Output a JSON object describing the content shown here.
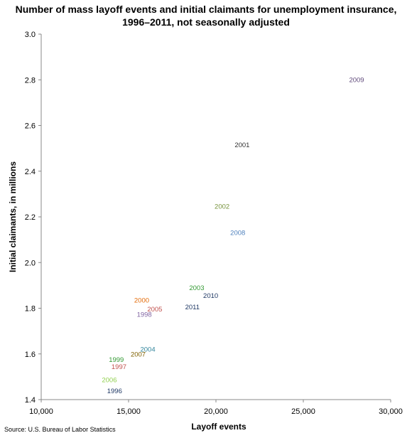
{
  "chart_data": {
    "type": "scatter",
    "title_line1": "Number of mass layoff events and initial claimants for unemployment insurance,",
    "title_line2": "1996–2011, not seasonally adjusted",
    "xlabel": "Layoff events",
    "ylabel": "Initial claimants, in millions",
    "xlim": [
      10000,
      30000
    ],
    "ylim": [
      1.4,
      3.0
    ],
    "xticks": [
      10000,
      15000,
      20000,
      25000,
      30000
    ],
    "xtick_labels": [
      "10,000",
      "15,000",
      "20,000",
      "25,000",
      "30,000"
    ],
    "yticks": [
      1.4,
      1.6,
      1.8,
      2.0,
      2.2,
      2.4,
      2.6,
      2.8,
      3.0
    ],
    "ytick_labels": [
      "1.4",
      "1.6",
      "1.8",
      "2.0",
      "2.2",
      "2.4",
      "2.6",
      "2.8",
      "3.0"
    ],
    "grid": false,
    "points": [
      {
        "label": "1996",
        "x": 14200,
        "y": 1.437,
        "color": "#1f3864"
      },
      {
        "label": "1997",
        "x": 14450,
        "y": 1.543,
        "color": "#c0504d"
      },
      {
        "label": "1998",
        "x": 15900,
        "y": 1.772,
        "color": "#8064a2"
      },
      {
        "label": "1999",
        "x": 14300,
        "y": 1.574,
        "color": "#339933"
      },
      {
        "label": "2000",
        "x": 15750,
        "y": 1.835,
        "color": "#e46c0a"
      },
      {
        "label": "2001",
        "x": 21500,
        "y": 2.515,
        "color": "#333333"
      },
      {
        "label": "2002",
        "x": 20350,
        "y": 2.245,
        "color": "#77933c"
      },
      {
        "label": "2003",
        "x": 18900,
        "y": 1.888,
        "color": "#339933"
      },
      {
        "label": "2004",
        "x": 16100,
        "y": 1.62,
        "color": "#31859c"
      },
      {
        "label": "2005",
        "x": 16500,
        "y": 1.796,
        "color": "#c0504d"
      },
      {
        "label": "2006",
        "x": 13900,
        "y": 1.485,
        "color": "#92d050"
      },
      {
        "label": "2007",
        "x": 15550,
        "y": 1.598,
        "color": "#7f6000"
      },
      {
        "label": "2008",
        "x": 21250,
        "y": 2.13,
        "color": "#4f81bd"
      },
      {
        "label": "2009",
        "x": 28050,
        "y": 2.8,
        "color": "#604a7b"
      },
      {
        "label": "2010",
        "x": 19700,
        "y": 1.854,
        "color": "#1f3864"
      },
      {
        "label": "2011",
        "x": 18650,
        "y": 1.805,
        "color": "#1f3864"
      }
    ]
  },
  "source": "Source: U.S. Bureau of Labor Statistics"
}
